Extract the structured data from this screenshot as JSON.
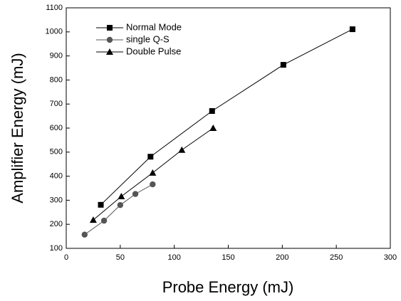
{
  "chart_data": {
    "type": "line",
    "x_label": "Probe Energy (mJ)",
    "y_label": "Amplifier Energy (mJ)",
    "xlim": [
      0,
      300
    ],
    "xticks": [
      0,
      50,
      100,
      150,
      200,
      250,
      300
    ],
    "ylim": [
      100,
      1100
    ],
    "yticks": [
      100,
      200,
      300,
      400,
      500,
      600,
      700,
      800,
      900,
      1000,
      1100
    ],
    "legend": "top-left",
    "series": [
      {
        "name": "Normal Mode",
        "color": "#000000",
        "marker": "square",
        "x": [
          32,
          78,
          135,
          201,
          265
        ],
        "values": [
          281,
          481,
          671,
          863,
          1011
        ]
      },
      {
        "name": "single Q-S",
        "color": "#555555",
        "marker": "circle",
        "x": [
          17,
          35,
          50,
          64,
          80
        ],
        "values": [
          157,
          215,
          280,
          326,
          366
        ]
      },
      {
        "name": "Double Pulse",
        "color": "#000000",
        "marker": "triangle",
        "x": [
          25,
          51,
          80,
          107,
          136
        ],
        "values": [
          218,
          316,
          414,
          509,
          600
        ]
      }
    ]
  }
}
